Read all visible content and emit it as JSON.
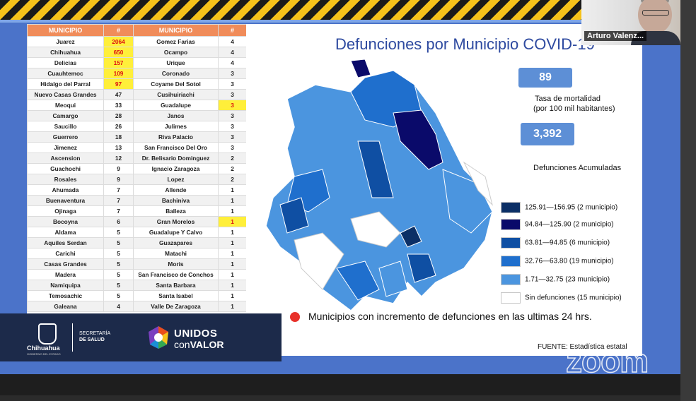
{
  "table": {
    "headers": [
      "MUNICIPIO",
      "#",
      "MUNICIPIO",
      "#"
    ],
    "rows": [
      [
        "Juarez",
        "2064",
        "Gomez Farias",
        "4"
      ],
      [
        "Chihuahua",
        "650",
        "Ocampo",
        "4"
      ],
      [
        "Delicias",
        "157",
        "Urique",
        "4"
      ],
      [
        "Cuauhtemoc",
        "109",
        "Coronado",
        "3"
      ],
      [
        "Hidalgo del Parral",
        "97",
        "Coyame Del Sotol",
        "3"
      ],
      [
        "Nuevo Casas Grandes",
        "47",
        "Cusihuiriachi",
        "3"
      ],
      [
        "Meoqui",
        "33",
        "Guadalupe",
        "3"
      ],
      [
        "Camargo",
        "28",
        "Janos",
        "3"
      ],
      [
        "Saucillo",
        "26",
        "Julimes",
        "3"
      ],
      [
        "Guerrero",
        "18",
        "Riva Palacio",
        "3"
      ],
      [
        "Jimenez",
        "13",
        "San Francisco Del Oro",
        "3"
      ],
      [
        "Ascension",
        "12",
        "Dr. Belisario Dominguez",
        "2"
      ],
      [
        "Guachochi",
        "9",
        "Ignacio Zaragoza",
        "2"
      ],
      [
        "Rosales",
        "9",
        "Lopez",
        "2"
      ],
      [
        "Ahumada",
        "7",
        "Allende",
        "1"
      ],
      [
        "Buenaventura",
        "7",
        "Bachiniva",
        "1"
      ],
      [
        "Ojinaga",
        "7",
        "Balleza",
        "1"
      ],
      [
        "Bocoyna",
        "6",
        "Gran Morelos",
        "1"
      ],
      [
        "Aldama",
        "5",
        "Guadalupe Y Calvo",
        "1"
      ],
      [
        "Aquiles Serdan",
        "5",
        "Guazapares",
        "1"
      ],
      [
        "Carichi",
        "5",
        "Matachi",
        "1"
      ],
      [
        "Casas Grandes",
        "5",
        "Moris",
        "1"
      ],
      [
        "Madera",
        "5",
        "San Francisco de Conchos",
        "1"
      ],
      [
        "Namiquipa",
        "5",
        "Santa Barbara",
        "1"
      ],
      [
        "Temosachic",
        "5",
        "Santa Isabel",
        "1"
      ],
      [
        "Galeana",
        "4",
        "Valle De Zaragoza",
        "1"
      ]
    ],
    "highlight_left": [
      "Juarez",
      "Chihuahua",
      "Delicias",
      "Cuauhtemoc",
      "Hidalgo del Parral"
    ],
    "highlight_right": [
      "Guadalupe",
      "Gran Morelos"
    ]
  },
  "slide": {
    "title": "Defunciones por Municipio COVID-19",
    "mortality_value": "89",
    "mortality_label_1": "Tasa de mortalidad",
    "mortality_label_2": "(por 100 mil habitantes)",
    "accum_value": "3,392",
    "accum_label": "Defunciones Acumuladas",
    "legend": [
      {
        "label": "125.91—156.95 (2 municipio)",
        "color": "#0b2f66"
      },
      {
        "label": "94.84—125.90 (2 municipio)",
        "color": "#0a0a6a"
      },
      {
        "label": "63.81—94.85 (6 municipio)",
        "color": "#0f4fa3"
      },
      {
        "label": "32.76—63.80 (19 municipio)",
        "color": "#1f6fcd"
      },
      {
        "label": "1.71—32.75 (23 municipio)",
        "color": "#4b95df"
      },
      {
        "label": "Sin defunciones (15 municipio)",
        "color": "#ffffff"
      }
    ],
    "increment_note": "Municipios con incremento de defunciones en las ultimas 24 hrs.",
    "source": "FUENTE: Estadística estatal"
  },
  "footer": {
    "state_name": "Chihuahua",
    "state_sub": "GOBIERNO DEL ESTADO",
    "secretaria_1": "SECRETARÍA",
    "secretaria_2": "DE SALUD",
    "unidos": "UNIDOS",
    "con": "con",
    "valor": "VALOR"
  },
  "video": {
    "participant_name": "Arturo Valenz..."
  },
  "watermark": "zoom"
}
